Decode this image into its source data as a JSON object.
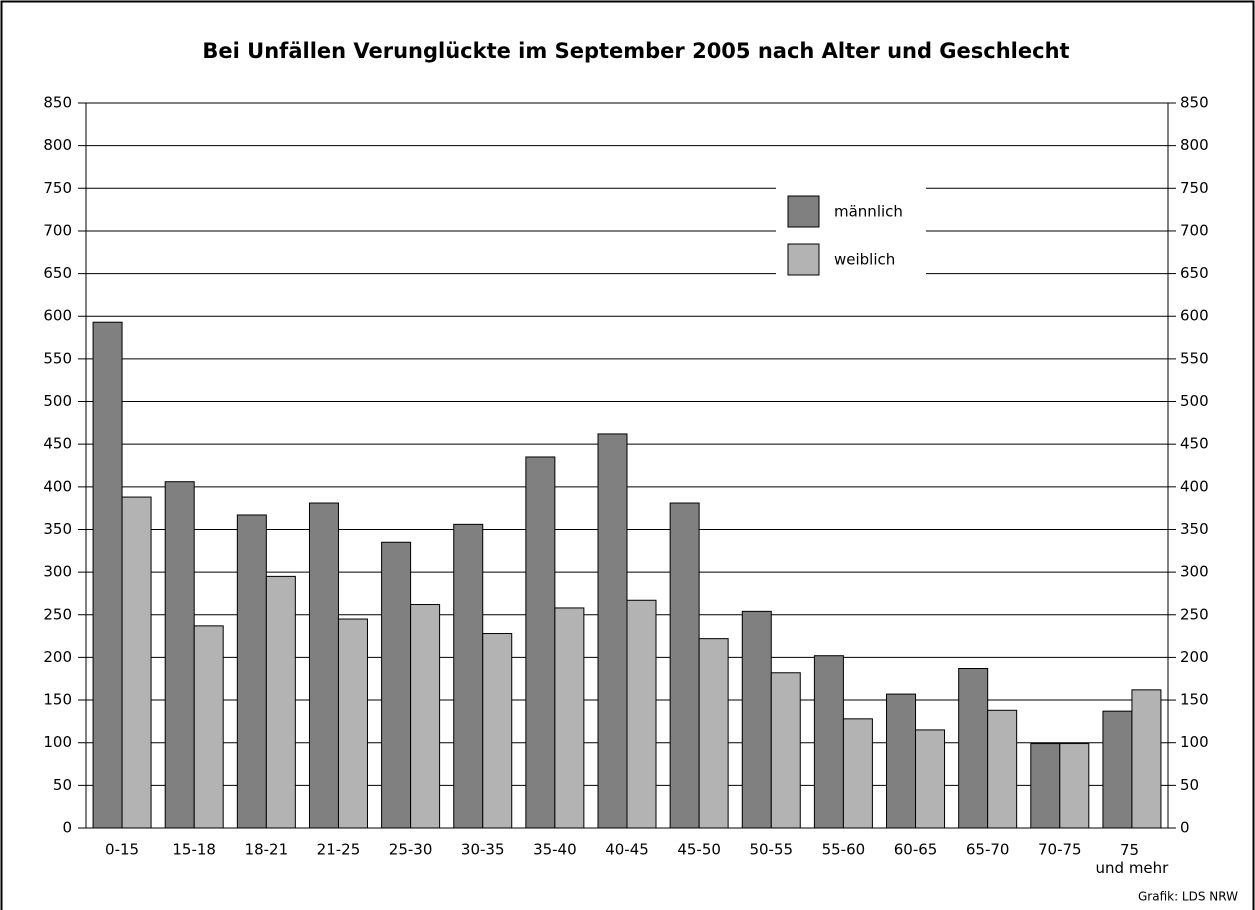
{
  "chart_data": {
    "type": "bar",
    "title": "Bei Unfällen Verunglückte im September 2005 nach Alter und Geschlecht",
    "categories": [
      "0-15",
      "15-18",
      "18-21",
      "21-25",
      "25-30",
      "30-35",
      "35-40",
      "40-45",
      "45-50",
      "50-55",
      "55-60",
      "60-65",
      "65-70",
      "70-75",
      "75 und mehr"
    ],
    "series": [
      {
        "name": "männlich",
        "color": "#808080",
        "values": [
          593,
          406,
          367,
          381,
          335,
          356,
          435,
          462,
          381,
          254,
          202,
          157,
          187,
          99,
          137
        ]
      },
      {
        "name": "weiblich",
        "color": "#b3b3b3",
        "values": [
          388,
          237,
          295,
          245,
          262,
          228,
          258,
          267,
          222,
          182,
          128,
          115,
          138,
          99,
          162
        ]
      }
    ],
    "ylim": [
      0,
      850
    ],
    "yticks": [
      0,
      50,
      100,
      150,
      200,
      250,
      300,
      350,
      400,
      450,
      500,
      550,
      600,
      650,
      700,
      750,
      800,
      850
    ],
    "y2lim": [
      0,
      850
    ],
    "y2ticks": [
      0,
      50,
      100,
      150,
      200,
      250,
      300,
      350,
      400,
      450,
      500,
      550,
      600,
      650,
      700,
      750,
      800,
      850
    ],
    "grid": true,
    "legend": "upper right",
    "source": "Grafik: LDS NRW"
  }
}
